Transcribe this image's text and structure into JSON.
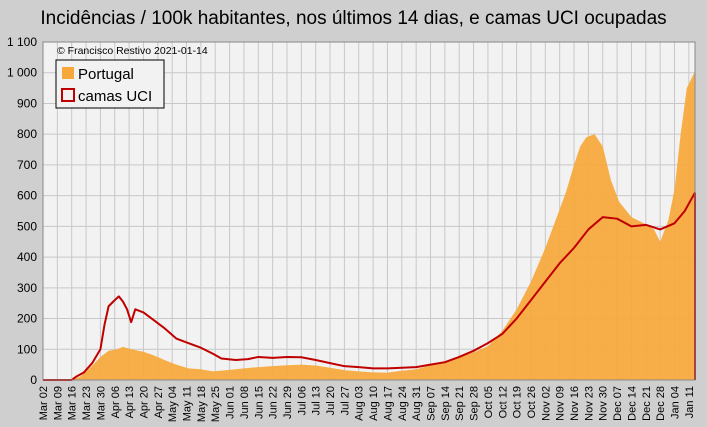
{
  "chart_data": {
    "type": "area",
    "title": "Incidências / 100k habitantes, nos últimos 14 dias, e camas UCI ocupadas",
    "credit": "© Francisco Restivo 2021-01-14",
    "ylim": [
      0,
      1100
    ],
    "yticks": [
      0,
      100,
      200,
      300,
      400,
      500,
      600,
      700,
      800,
      900,
      "1 000",
      "1 100"
    ],
    "x_start": "2020-03-02",
    "x_end": "2021-01-14",
    "xtick_labels": [
      "Mar 02",
      "Mar 09",
      "Mar 16",
      "Mar 23",
      "Mar 30",
      "Apr 06",
      "Apr 13",
      "Apr 20",
      "Apr 27",
      "May 04",
      "May 11",
      "May 18",
      "May 25",
      "Jun 01",
      "Jun 08",
      "Jun 15",
      "Jun 22",
      "Jun 29",
      "Jul 06",
      "Jul 13",
      "Jul 20",
      "Jul 27",
      "Aug 03",
      "Aug 10",
      "Aug 17",
      "Aug 24",
      "Aug 31",
      "Sep 07",
      "Sep 14",
      "Sep 21",
      "Sep 28",
      "Oct 05",
      "Oct 12",
      "Oct 19",
      "Oct 26",
      "Nov 02",
      "Nov 09",
      "Nov 16",
      "Nov 23",
      "Nov 30",
      "Dec 07",
      "Dec 14",
      "Dec 21",
      "Dec 28",
      "Jan 04",
      "Jan 11"
    ],
    "grid": true,
    "legend_position": "top-left",
    "colors": {
      "background": "#cfcfcf",
      "plot_bg": "#f2f2f2",
      "grid": "#c8c8c8",
      "portugal": "#f7a83a",
      "uci": "#c00000"
    },
    "series": [
      {
        "name": "Portugal",
        "style": "area",
        "points": [
          [
            "2020-03-02",
            0
          ],
          [
            "2020-03-10",
            0
          ],
          [
            "2020-03-16",
            2
          ],
          [
            "2020-03-20",
            10
          ],
          [
            "2020-03-25",
            40
          ],
          [
            "2020-03-30",
            75
          ],
          [
            "2020-04-03",
            95
          ],
          [
            "2020-04-07",
            100
          ],
          [
            "2020-04-10",
            108
          ],
          [
            "2020-04-14",
            100
          ],
          [
            "2020-04-20",
            92
          ],
          [
            "2020-04-25",
            80
          ],
          [
            "2020-05-01",
            63
          ],
          [
            "2020-05-06",
            50
          ],
          [
            "2020-05-12",
            38
          ],
          [
            "2020-05-18",
            35
          ],
          [
            "2020-05-24",
            28
          ],
          [
            "2020-06-01",
            33
          ],
          [
            "2020-06-08",
            38
          ],
          [
            "2020-06-15",
            42
          ],
          [
            "2020-06-22",
            45
          ],
          [
            "2020-06-29",
            48
          ],
          [
            "2020-07-06",
            50
          ],
          [
            "2020-07-13",
            47
          ],
          [
            "2020-07-20",
            40
          ],
          [
            "2020-07-27",
            32
          ],
          [
            "2020-08-03",
            28
          ],
          [
            "2020-08-10",
            25
          ],
          [
            "2020-08-17",
            24
          ],
          [
            "2020-08-24",
            30
          ],
          [
            "2020-08-31",
            35
          ],
          [
            "2020-09-07",
            48
          ],
          [
            "2020-09-14",
            60
          ],
          [
            "2020-09-21",
            75
          ],
          [
            "2020-09-28",
            90
          ],
          [
            "2020-10-05",
            110
          ],
          [
            "2020-10-12",
            160
          ],
          [
            "2020-10-19",
            230
          ],
          [
            "2020-10-26",
            320
          ],
          [
            "2020-11-02",
            430
          ],
          [
            "2020-11-07",
            520
          ],
          [
            "2020-11-12",
            610
          ],
          [
            "2020-11-16",
            700
          ],
          [
            "2020-11-19",
            760
          ],
          [
            "2020-11-22",
            790
          ],
          [
            "2020-11-26",
            800
          ],
          [
            "2020-11-30",
            760
          ],
          [
            "2020-12-04",
            650
          ],
          [
            "2020-12-08",
            580
          ],
          [
            "2020-12-14",
            530
          ],
          [
            "2020-12-20",
            510
          ],
          [
            "2020-12-25",
            490
          ],
          [
            "2020-12-28",
            450
          ],
          [
            "2021-01-01",
            520
          ],
          [
            "2021-01-04",
            620
          ],
          [
            "2021-01-07",
            800
          ],
          [
            "2021-01-10",
            950
          ],
          [
            "2021-01-14",
            1005
          ]
        ]
      },
      {
        "name": "camas UCI",
        "style": "line",
        "points": [
          [
            "2020-03-02",
            0
          ],
          [
            "2020-03-16",
            0
          ],
          [
            "2020-03-18",
            10
          ],
          [
            "2020-03-22",
            25
          ],
          [
            "2020-03-26",
            55
          ],
          [
            "2020-03-30",
            100
          ],
          [
            "2020-04-01",
            180
          ],
          [
            "2020-04-03",
            240
          ],
          [
            "2020-04-06",
            260
          ],
          [
            "2020-04-08",
            272
          ],
          [
            "2020-04-10",
            255
          ],
          [
            "2020-04-12",
            230
          ],
          [
            "2020-04-14",
            188
          ],
          [
            "2020-04-16",
            230
          ],
          [
            "2020-04-20",
            220
          ],
          [
            "2020-04-24",
            200
          ],
          [
            "2020-04-30",
            170
          ],
          [
            "2020-05-06",
            135
          ],
          [
            "2020-05-12",
            120
          ],
          [
            "2020-05-18",
            105
          ],
          [
            "2020-05-24",
            85
          ],
          [
            "2020-05-28",
            70
          ],
          [
            "2020-06-04",
            65
          ],
          [
            "2020-06-10",
            68
          ],
          [
            "2020-06-15",
            75
          ],
          [
            "2020-06-22",
            72
          ],
          [
            "2020-06-29",
            75
          ],
          [
            "2020-07-06",
            74
          ],
          [
            "2020-07-13",
            65
          ],
          [
            "2020-07-20",
            55
          ],
          [
            "2020-07-27",
            45
          ],
          [
            "2020-08-03",
            42
          ],
          [
            "2020-08-10",
            38
          ],
          [
            "2020-08-17",
            38
          ],
          [
            "2020-08-24",
            40
          ],
          [
            "2020-08-31",
            42
          ],
          [
            "2020-09-07",
            50
          ],
          [
            "2020-09-14",
            58
          ],
          [
            "2020-09-21",
            75
          ],
          [
            "2020-09-28",
            95
          ],
          [
            "2020-10-05",
            120
          ],
          [
            "2020-10-12",
            150
          ],
          [
            "2020-10-19",
            200
          ],
          [
            "2020-10-26",
            260
          ],
          [
            "2020-11-02",
            320
          ],
          [
            "2020-11-09",
            380
          ],
          [
            "2020-11-16",
            430
          ],
          [
            "2020-11-23",
            490
          ],
          [
            "2020-11-30",
            530
          ],
          [
            "2020-12-07",
            525
          ],
          [
            "2020-12-14",
            500
          ],
          [
            "2020-12-21",
            505
          ],
          [
            "2020-12-28",
            490
          ],
          [
            "2021-01-04",
            510
          ],
          [
            "2021-01-09",
            550
          ],
          [
            "2021-01-14",
            610
          ]
        ]
      }
    ]
  }
}
